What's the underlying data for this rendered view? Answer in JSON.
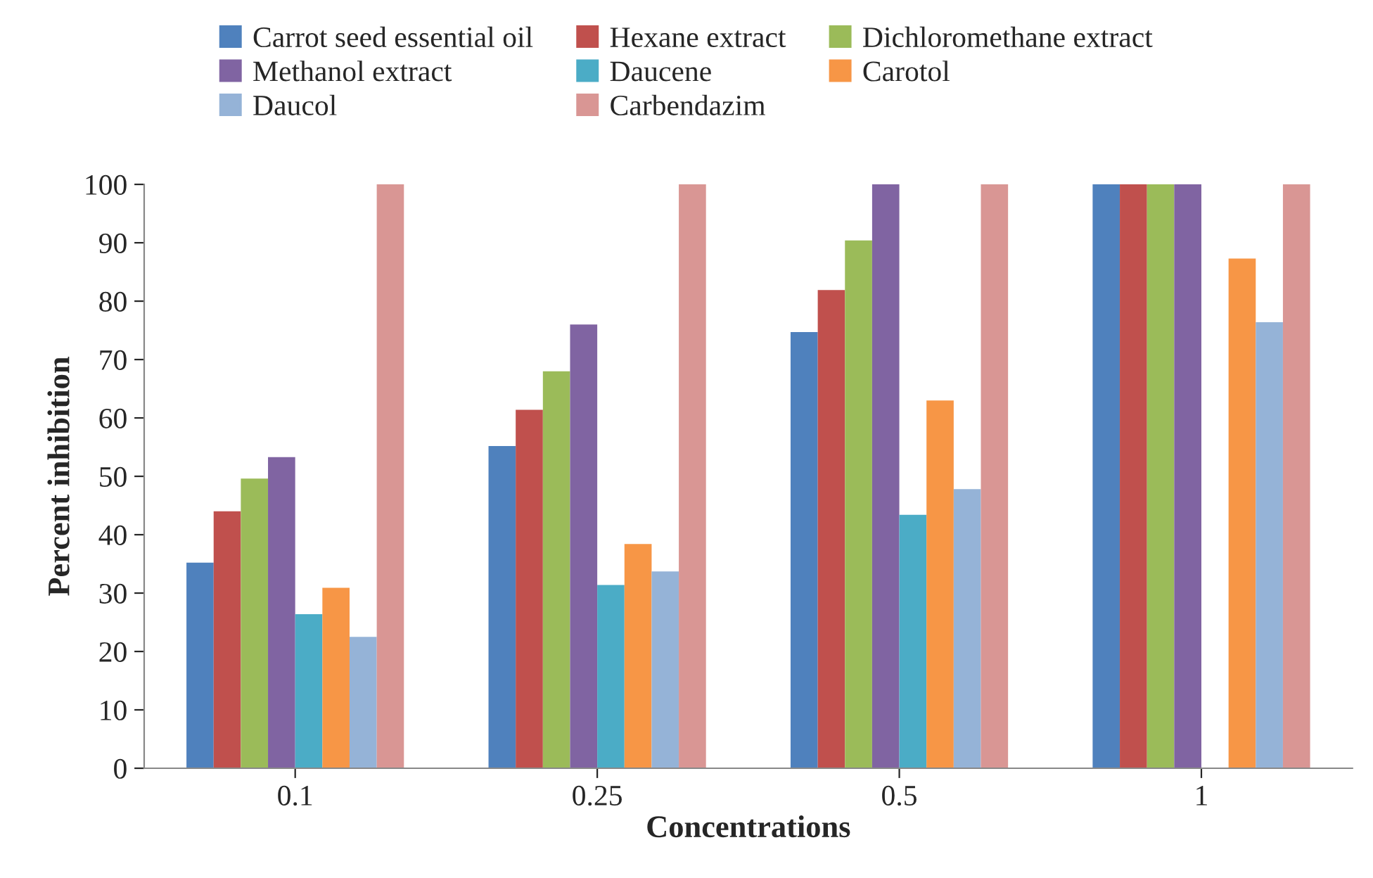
{
  "chart_data": {
    "type": "bar",
    "xlabel": "Concentrations",
    "ylabel": "Percent inhibition",
    "categories": [
      "0.1",
      "0.25",
      "0.5",
      "1"
    ],
    "series": [
      {
        "name": "Carrot seed essential oil",
        "color": "#4f81bd",
        "values": [
          35.2,
          55.2,
          74.7,
          100
        ]
      },
      {
        "name": "Hexane extract",
        "color": "#c0504d",
        "values": [
          44,
          61.4,
          81.9,
          100
        ]
      },
      {
        "name": "Dichloromethane extract",
        "color": "#9bbb59",
        "values": [
          49.6,
          68,
          90.4,
          100
        ]
      },
      {
        "name": "Methanol extract",
        "color": "#8064a2",
        "values": [
          53.3,
          76,
          100,
          100
        ]
      },
      {
        "name": "Daucene",
        "color": "#4bacc6",
        "values": [
          26.4,
          31.4,
          43.4,
          0
        ]
      },
      {
        "name": "Carotol",
        "color": "#f79646",
        "values": [
          30.9,
          38.4,
          63,
          87.3
        ]
      },
      {
        "name": "Daucol",
        "color": "#95b3d7",
        "values": [
          22.5,
          33.7,
          47.8,
          76.4
        ]
      },
      {
        "name": "Carbendazim",
        "color": "#d99694",
        "values": [
          100,
          100,
          100,
          100
        ]
      }
    ],
    "ylim": [
      0,
      100
    ],
    "yticks": [
      0,
      10,
      20,
      30,
      40,
      50,
      60,
      70,
      80,
      90,
      100
    ],
    "grid": false,
    "legend": "top"
  }
}
